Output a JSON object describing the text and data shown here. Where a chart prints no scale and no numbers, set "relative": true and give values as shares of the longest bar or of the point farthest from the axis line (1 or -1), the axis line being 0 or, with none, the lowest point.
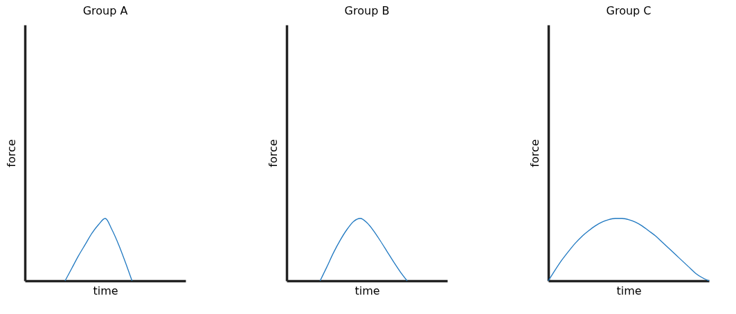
{
  "chart_data": [
    {
      "type": "line",
      "title": "Group A",
      "xlabel": "time",
      "ylabel": "force",
      "relative": true,
      "tick_labels": false,
      "color": "#1f78c1",
      "categories": [
        null,
        null,
        null,
        null,
        null,
        null,
        null,
        null,
        null,
        null,
        null,
        null,
        null,
        null,
        null,
        null,
        null,
        null,
        null,
        null,
        null,
        null,
        null,
        null,
        null
      ],
      "values": [
        null,
        null,
        null,
        null,
        null,
        null,
        0,
        0.2,
        0.4,
        0.58,
        0.76,
        0.9,
        1,
        0.82,
        0.58,
        0.3,
        0,
        null,
        null,
        null,
        null,
        null,
        null,
        null,
        null
      ]
    },
    {
      "type": "line",
      "title": "Group B",
      "xlabel": "time",
      "ylabel": "force",
      "relative": true,
      "tick_labels": false,
      "color": "#1f78c1",
      "categories": [
        null,
        null,
        null,
        null,
        null,
        null,
        null,
        null,
        null,
        null,
        null,
        null,
        null,
        null,
        null,
        null,
        null,
        null,
        null,
        null,
        null,
        null,
        null,
        null,
        null
      ],
      "values": [
        null,
        null,
        null,
        null,
        null,
        0,
        0.22,
        0.45,
        0.65,
        0.82,
        0.95,
        1,
        0.93,
        0.8,
        0.64,
        0.47,
        0.3,
        0.14,
        0,
        null,
        null,
        null,
        null,
        null,
        null
      ]
    },
    {
      "type": "line",
      "title": "Group C",
      "xlabel": "time",
      "ylabel": "force",
      "relative": true,
      "tick_labels": false,
      "color": "#1f78c1",
      "categories": [
        null,
        null,
        null,
        null,
        null,
        null,
        null,
        null,
        null,
        null,
        null,
        null,
        null,
        null,
        null,
        null,
        null,
        null,
        null,
        null,
        null,
        null,
        null,
        null,
        null
      ],
      "values": [
        0,
        0.17,
        0.33,
        0.47,
        0.6,
        0.71,
        0.8,
        0.88,
        0.94,
        0.98,
        1,
        1,
        0.98,
        0.94,
        0.88,
        0.8,
        0.72,
        0.62,
        0.52,
        0.42,
        0.32,
        0.22,
        0.12,
        0.05,
        0
      ]
    }
  ]
}
